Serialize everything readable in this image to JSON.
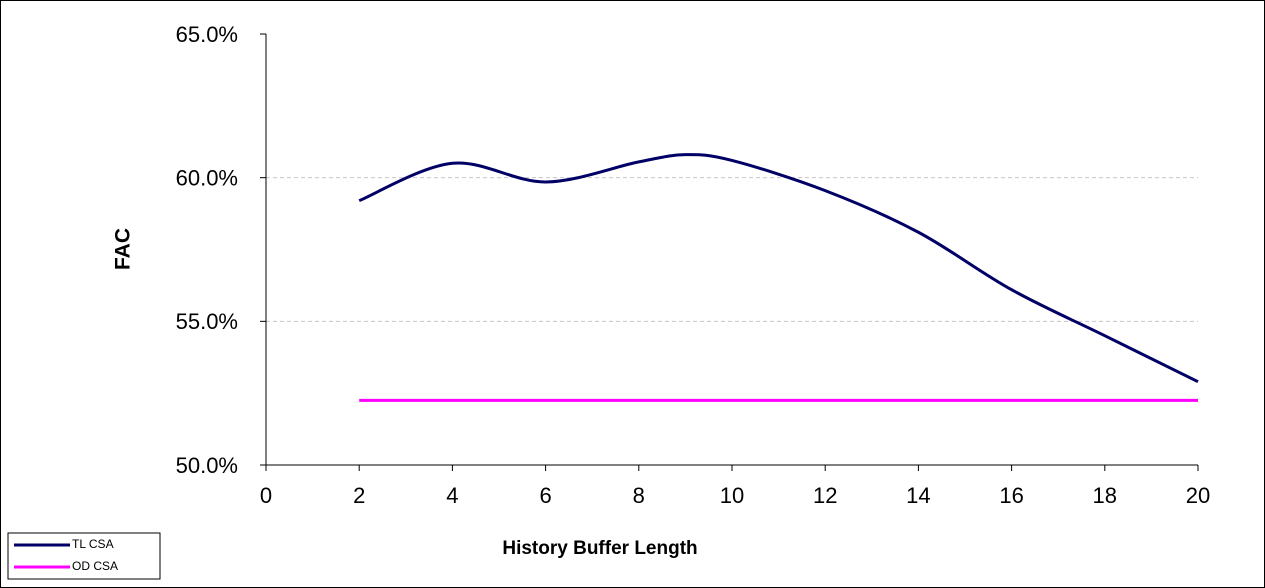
{
  "chart_data": {
    "type": "line",
    "x_label": "History Buffer Length",
    "y_label": "FAC",
    "series": [
      {
        "name": "TL CSA",
        "color": "#000066",
        "x": [
          2,
          4,
          6,
          8,
          9,
          10,
          12,
          14,
          16,
          18,
          20
        ],
        "values": [
          59.2,
          60.5,
          59.85,
          60.55,
          60.8,
          60.6,
          59.55,
          58.1,
          56.1,
          54.5,
          52.9
        ]
      },
      {
        "name": "OD CSA",
        "color": "#ff00ff",
        "x": [
          2,
          20
        ],
        "values": [
          52.25,
          52.25
        ]
      }
    ],
    "xlim": [
      0,
      20
    ],
    "xticks": [
      0,
      2,
      4,
      6,
      8,
      10,
      12,
      14,
      16,
      18,
      20
    ],
    "ylim": [
      50,
      65
    ],
    "yticks": [
      {
        "value": 50,
        "label": "50.0%"
      },
      {
        "value": 55,
        "label": "55.0%"
      },
      {
        "value": 60,
        "label": "60.0%"
      },
      {
        "value": 65,
        "label": "65.0%"
      }
    ],
    "grid": true,
    "legend": "bottom-left"
  }
}
